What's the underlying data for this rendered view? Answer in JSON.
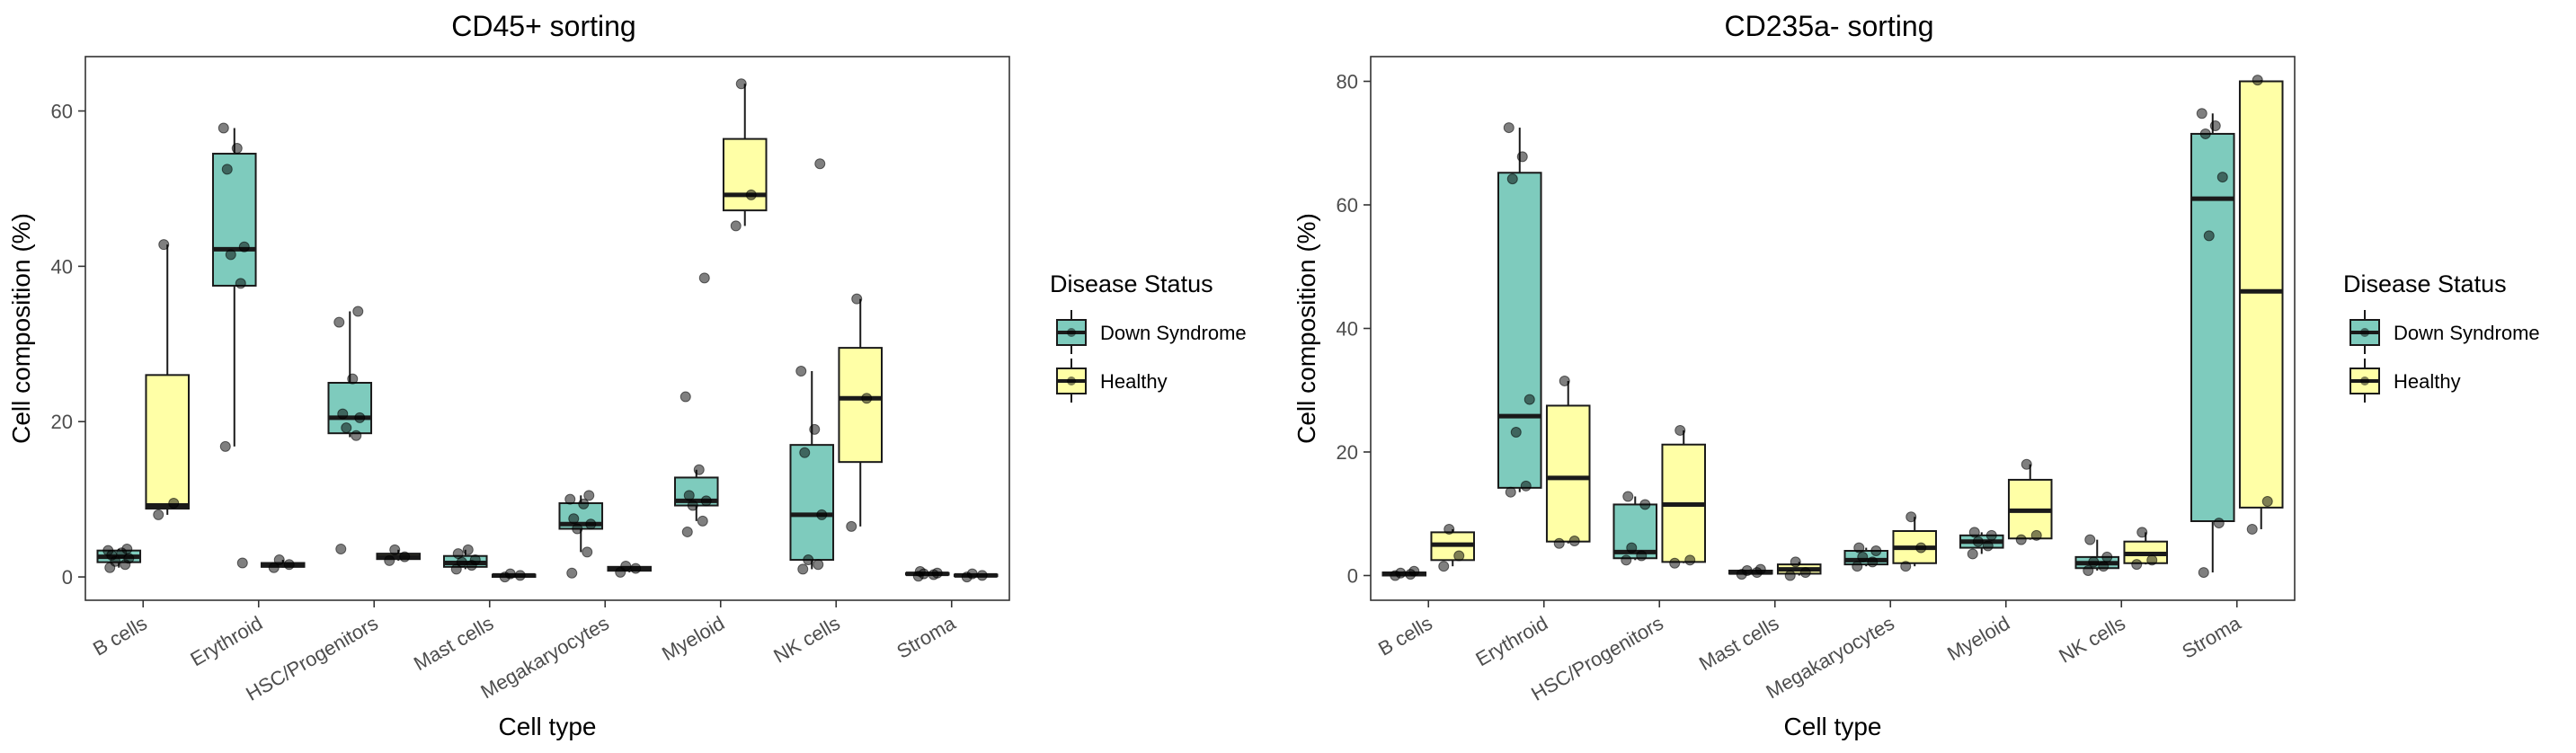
{
  "chart_data": [
    {
      "type": "box",
      "title": "CD45+ sorting",
      "xlabel": "Cell type",
      "ylabel": "Cell composition (%)",
      "ylim": [
        -3,
        67
      ],
      "yticks": [
        0,
        20,
        40,
        60
      ],
      "categories": [
        "B cells",
        "Erythroid",
        "HSC/Progenitors",
        "Mast cells",
        "Megakaryocytes",
        "Myeloid",
        "NK cells",
        "Stroma"
      ],
      "series": [
        {
          "name": "Down Syndrome",
          "color": "#7ecbbd",
          "boxes": [
            {
              "q1": 1.9,
              "median": 2.6,
              "q3": 3.4,
              "lo": 1.2,
              "hi": 3.6,
              "points": [
                1.2,
                1.6,
                2.0,
                2.4,
                2.8,
                3.1,
                3.4,
                3.6
              ]
            },
            {
              "q1": 37.5,
              "median": 42.2,
              "q3": 54.5,
              "lo": 16.8,
              "hi": 57.8,
              "points": [
                16.8,
                37.8,
                41.5,
                42.5,
                52.5,
                55.2,
                57.8,
                1.8
              ]
            },
            {
              "q1": 18.5,
              "median": 20.5,
              "q3": 25.0,
              "lo": 18.0,
              "hi": 34.2,
              "points": [
                3.6,
                18.2,
                19.2,
                20.5,
                21.0,
                25.5,
                32.8,
                34.2
              ]
            },
            {
              "q1": 1.3,
              "median": 1.8,
              "q3": 2.7,
              "lo": 1.0,
              "hi": 3.5,
              "points": [
                1.0,
                1.5,
                1.9,
                2.2,
                3.0,
                3.5
              ]
            },
            {
              "q1": 6.2,
              "median": 6.8,
              "q3": 9.5,
              "lo": 3.2,
              "hi": 10.5,
              "points": [
                0.5,
                3.2,
                6.2,
                6.8,
                7.5,
                9.4,
                10.0,
                10.5
              ]
            },
            {
              "q1": 9.2,
              "median": 9.8,
              "q3": 12.8,
              "lo": 7.2,
              "hi": 13.8,
              "points": [
                5.8,
                7.2,
                9.2,
                9.8,
                10.5,
                13.8,
                23.2,
                38.5
              ]
            },
            {
              "q1": 2.2,
              "median": 8.0,
              "q3": 17.0,
              "lo": 1.0,
              "hi": 26.5,
              "points": [
                1.0,
                1.6,
                2.2,
                8.0,
                16.0,
                19.0,
                26.5,
                53.2
              ]
            },
            {
              "q1": 0.3,
              "median": 0.4,
              "q3": 0.5,
              "lo": 0.1,
              "hi": 0.7,
              "points": [
                0.1,
                0.3,
                0.4,
                0.5,
                0.7
              ]
            }
          ]
        },
        {
          "name": "Healthy",
          "color": "#ffffa6",
          "boxes": [
            {
              "q1": 8.8,
              "median": 9.2,
              "q3": 26.0,
              "lo": 8.0,
              "hi": 42.8,
              "points": [
                8.0,
                9.5,
                42.8
              ]
            },
            {
              "q1": 1.3,
              "median": 1.5,
              "q3": 1.8,
              "lo": 1.2,
              "hi": 2.2,
              "points": [
                1.2,
                1.6,
                2.2
              ]
            },
            {
              "q1": 2.3,
              "median": 2.6,
              "q3": 3.0,
              "lo": 2.1,
              "hi": 3.5,
              "points": [
                2.1,
                2.6,
                3.5
              ]
            },
            {
              "q1": 0.0,
              "median": 0.2,
              "q3": 0.3,
              "lo": 0.0,
              "hi": 0.4,
              "points": [
                0.0,
                0.2,
                0.4
              ]
            },
            {
              "q1": 0.8,
              "median": 1.1,
              "q3": 1.3,
              "lo": 0.6,
              "hi": 1.4,
              "points": [
                0.6,
                1.1,
                1.4
              ]
            },
            {
              "q1": 47.2,
              "median": 49.2,
              "q3": 56.4,
              "lo": 45.2,
              "hi": 63.5,
              "points": [
                45.2,
                49.2,
                63.5
              ]
            },
            {
              "q1": 14.8,
              "median": 23.0,
              "q3": 29.5,
              "lo": 6.5,
              "hi": 35.8,
              "points": [
                6.5,
                23.0,
                35.8
              ]
            },
            {
              "q1": 0.1,
              "median": 0.2,
              "q3": 0.3,
              "lo": 0.0,
              "hi": 0.4,
              "points": [
                0.0,
                0.2,
                0.4
              ]
            }
          ]
        }
      ]
    },
    {
      "type": "box",
      "title": "CD235a- sorting",
      "xlabel": "Cell type",
      "ylabel": "Cell composition (%)",
      "ylim": [
        -4,
        84
      ],
      "yticks": [
        0,
        20,
        40,
        60,
        80
      ],
      "categories": [
        "B cells",
        "Erythroid",
        "HSC/Progenitors",
        "Mast cells",
        "Megakaryocytes",
        "Myeloid",
        "NK cells",
        "Stroma"
      ],
      "series": [
        {
          "name": "Down Syndrome",
          "color": "#7ecbbd",
          "boxes": [
            {
              "q1": 0.0,
              "median": 0.3,
              "q3": 0.5,
              "lo": 0.0,
              "hi": 0.7,
              "points": [
                0.0,
                0.2,
                0.4,
                0.7
              ]
            },
            {
              "q1": 14.2,
              "median": 25.8,
              "q3": 65.2,
              "lo": 13.5,
              "hi": 72.5,
              "points": [
                13.5,
                14.5,
                23.2,
                28.5,
                64.2,
                67.8,
                72.5
              ]
            },
            {
              "q1": 2.8,
              "median": 3.8,
              "q3": 11.5,
              "lo": 2.5,
              "hi": 12.8,
              "points": [
                2.5,
                3.2,
                4.5,
                11.5,
                12.8
              ]
            },
            {
              "q1": 0.3,
              "median": 0.5,
              "q3": 0.8,
              "lo": 0.2,
              "hi": 1.0,
              "points": [
                0.2,
                0.5,
                0.8,
                1.0
              ]
            },
            {
              "q1": 1.8,
              "median": 2.5,
              "q3": 4.0,
              "lo": 1.5,
              "hi": 4.5,
              "points": [
                1.5,
                2.2,
                3.0,
                4.0,
                4.5
              ]
            },
            {
              "q1": 4.5,
              "median": 5.5,
              "q3": 6.5,
              "lo": 3.5,
              "hi": 7.0,
              "points": [
                3.5,
                4.8,
                5.5,
                6.5,
                7.0
              ]
            },
            {
              "q1": 1.2,
              "median": 2.0,
              "q3": 3.0,
              "lo": 0.8,
              "hi": 5.8,
              "points": [
                0.8,
                1.5,
                2.2,
                3.0,
                5.8
              ]
            },
            {
              "q1": 8.8,
              "median": 61.0,
              "q3": 71.5,
              "lo": 0.5,
              "hi": 74.8,
              "points": [
                0.5,
                8.5,
                55.0,
                64.5,
                71.5,
                72.8,
                74.8
              ]
            }
          ]
        },
        {
          "name": "Healthy",
          "color": "#ffffa6",
          "boxes": [
            {
              "q1": 2.5,
              "median": 5.0,
              "q3": 7.0,
              "lo": 1.5,
              "hi": 7.5,
              "points": [
                1.5,
                3.2,
                7.5
              ]
            },
            {
              "q1": 5.5,
              "median": 15.8,
              "q3": 27.5,
              "lo": 5.2,
              "hi": 31.5,
              "points": [
                5.2,
                5.6,
                31.5
              ]
            },
            {
              "q1": 2.2,
              "median": 11.5,
              "q3": 21.2,
              "lo": 2.0,
              "hi": 23.5,
              "points": [
                2.0,
                2.5,
                23.5
              ]
            },
            {
              "q1": 0.3,
              "median": 1.0,
              "q3": 1.8,
              "lo": 0.0,
              "hi": 2.2,
              "points": [
                0.0,
                0.5,
                2.2
              ]
            },
            {
              "q1": 2.0,
              "median": 4.5,
              "q3": 7.2,
              "lo": 1.5,
              "hi": 9.5,
              "points": [
                1.5,
                4.5,
                9.5
              ]
            },
            {
              "q1": 6.0,
              "median": 10.5,
              "q3": 15.5,
              "lo": 5.8,
              "hi": 18.0,
              "points": [
                5.8,
                6.5,
                18.0
              ]
            },
            {
              "q1": 2.0,
              "median": 3.5,
              "q3": 5.5,
              "lo": 1.8,
              "hi": 7.0,
              "points": [
                1.8,
                2.5,
                7.0
              ]
            },
            {
              "q1": 11.0,
              "median": 46.0,
              "q3": 80.0,
              "lo": 7.5,
              "hi": 80.2,
              "points": [
                7.5,
                12.0,
                80.2
              ]
            }
          ]
        }
      ]
    }
  ],
  "legend": {
    "title": "Disease Status",
    "items": [
      {
        "label": "Down Syndrome",
        "color": "#7ecbbd"
      },
      {
        "label": "Healthy",
        "color": "#ffffa6"
      }
    ]
  }
}
